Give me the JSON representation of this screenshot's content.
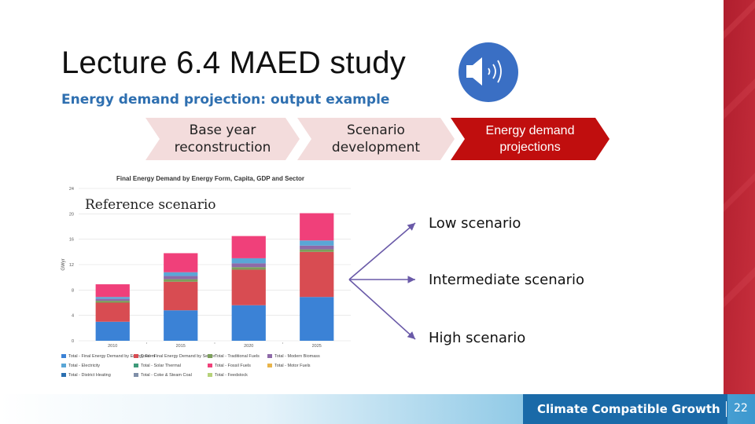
{
  "slide": {
    "title": "Lecture 6.4 MAED study",
    "subtitle": "Energy demand projection: output example",
    "audio": {
      "icon": "speaker-icon",
      "color": "#3a6fc4"
    }
  },
  "steps": [
    {
      "line1": "Base year",
      "line2": "reconstruction"
    },
    {
      "line1": "Scenario",
      "line2": "development"
    },
    {
      "line1": "Energy demand",
      "line2": "projections"
    }
  ],
  "reference_label": "Reference scenario",
  "scenarios": [
    {
      "label": "Low scenario"
    },
    {
      "label": "Intermediate scenario"
    },
    {
      "label": "High scenario"
    }
  ],
  "footer": {
    "brand": "Climate Compatible Growth",
    "page_number": "22",
    "brand_color": "#1a6aa8"
  },
  "chart_data": {
    "type": "bar",
    "stacked": true,
    "title": "Final Energy Demand by Energy Form, Capita, GDP and Sector",
    "ylabel": "GWyr",
    "ylim": [
      0,
      24
    ],
    "yticks": [
      "0",
      "4",
      "8",
      "12",
      "16",
      "20",
      "24"
    ],
    "categories": [
      "2010",
      "2015",
      "2020",
      "2025"
    ],
    "series": [
      {
        "name": "Total - Final Energy Demand by Energy Form",
        "color": "#3b82d6",
        "values": [
          3.0,
          4.8,
          5.6,
          6.9
        ]
      },
      {
        "name": "Total - Final Energy Demand by Sector",
        "color": "#d84c52",
        "values": [
          3.0,
          4.5,
          5.6,
          7.1
        ]
      },
      {
        "name": "Total - Traditional Fuels",
        "color": "#7c9f5b",
        "values": [
          0.3,
          0.4,
          0.4,
          0.4
        ]
      },
      {
        "name": "Total - Modern Biomass",
        "color": "#8e6aa8",
        "values": [
          0.3,
          0.5,
          0.6,
          0.6
        ]
      },
      {
        "name": "Total - Electricity",
        "color": "#5aa6d6",
        "values": [
          0.3,
          0.6,
          0.8,
          0.8
        ]
      },
      {
        "name": "Total - Fossil Fuels",
        "color": "#f0407a",
        "values": [
          2.0,
          3.0,
          3.5,
          4.3
        ]
      }
    ],
    "legend": [
      {
        "name": "Total - Final Energy Demand by Energy Form",
        "color": "#3b82d6"
      },
      {
        "name": "Total - Final Energy Demand by Sector",
        "color": "#d84c52"
      },
      {
        "name": "Total - Traditional Fuels",
        "color": "#7c9f5b"
      },
      {
        "name": "Total - Modern Biomass",
        "color": "#8e6aa8"
      },
      {
        "name": "Total - Electricity",
        "color": "#5aa6d6"
      },
      {
        "name": "Total - Solar Thermal",
        "color": "#3e9a7a"
      },
      {
        "name": "Total - Fossil Fuels",
        "color": "#f0407a"
      },
      {
        "name": "Total - Motor Fuels",
        "color": "#e8b44a"
      },
      {
        "name": "Total - District Heating",
        "color": "#2a6fb0"
      },
      {
        "name": "Total - Coke & Steam Coal",
        "color": "#7f8fa8"
      },
      {
        "name": "Total - Feedstock",
        "color": "#b6d27a"
      }
    ],
    "legend_position": "bottom"
  }
}
